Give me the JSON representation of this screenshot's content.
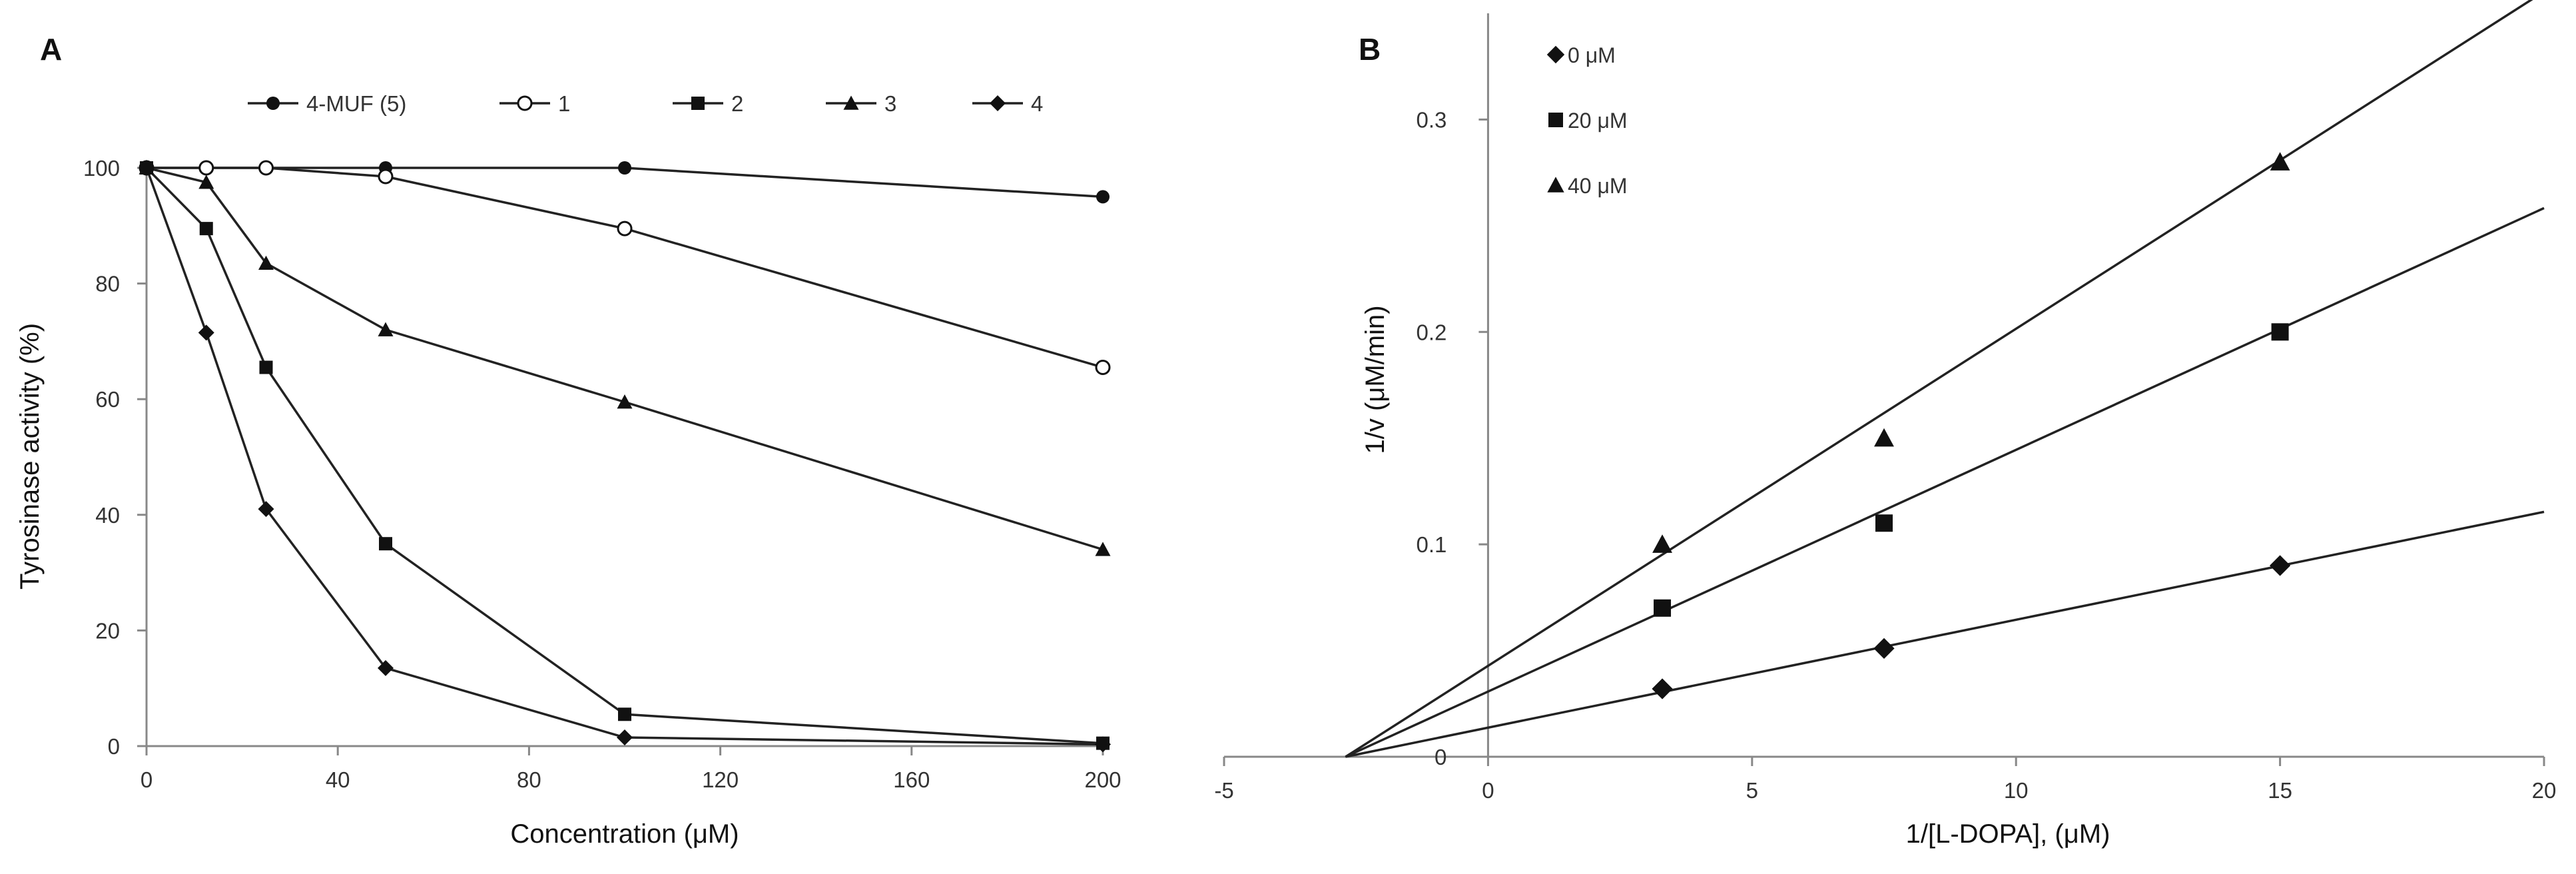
{
  "chart_data": [
    {
      "panel": "A",
      "type": "line",
      "title": "",
      "xlabel": "Concentration (μM)",
      "ylabel": "Tyrosinase activity (%)",
      "xlim": [
        0,
        200
      ],
      "ylim": [
        0,
        100
      ],
      "xticks": [
        0,
        40,
        80,
        120,
        160,
        200
      ],
      "yticks": [
        0,
        20,
        40,
        60,
        80,
        100
      ],
      "grid": false,
      "legend_position": "top",
      "series": [
        {
          "name": "4-MUF (5)",
          "marker": "filled-circle",
          "x": [
            0,
            12.5,
            25,
            50,
            100,
            200
          ],
          "y": [
            100,
            100,
            100,
            100,
            100,
            95
          ]
        },
        {
          "name": "1",
          "marker": "open-circle",
          "x": [
            0,
            12.5,
            25,
            50,
            100,
            200
          ],
          "y": [
            100,
            100,
            100,
            98.5,
            89.5,
            65.5
          ]
        },
        {
          "name": "2",
          "marker": "square",
          "x": [
            0,
            12.5,
            25,
            50,
            100,
            200
          ],
          "y": [
            100,
            89.5,
            65.5,
            35,
            5.5,
            0.5
          ]
        },
        {
          "name": "3",
          "marker": "triangle",
          "x": [
            0,
            12.5,
            25,
            50,
            100,
            200
          ],
          "y": [
            100,
            97.5,
            83.5,
            72,
            59.5,
            34
          ]
        },
        {
          "name": "4",
          "marker": "diamond",
          "x": [
            0,
            12.5,
            25,
            50,
            100,
            200
          ],
          "y": [
            100,
            71.5,
            41,
            13.5,
            1.5,
            0.3
          ]
        }
      ]
    },
    {
      "panel": "B",
      "type": "scatter",
      "title": "",
      "xlabel": "1/[L-DOPA], (μM)",
      "ylabel": "1/v (μM/min)",
      "xlim": [
        -5,
        20
      ],
      "ylim": [
        0,
        0.35
      ],
      "xticks": [
        -5,
        0,
        5,
        10,
        15,
        20
      ],
      "yticks": [
        0,
        0.1,
        0.2,
        0.3
      ],
      "xtick_labels": [
        "-5",
        "0",
        "5",
        "10",
        "15",
        "20"
      ],
      "ytick_labels": [
        "0",
        "0.1",
        "0.2",
        "0.3"
      ],
      "grid": false,
      "legend_position": "top-left",
      "series": [
        {
          "name": "0 μM",
          "marker": "diamond",
          "x": [
            3.3,
            7.5,
            15
          ],
          "y": [
            0.032,
            0.051,
            0.09
          ],
          "fit": {
            "slope": 0.00508,
            "intercept": 0.0137,
            "x_range": [
              -2.7,
              20
            ]
          }
        },
        {
          "name": "20 μM",
          "marker": "square",
          "x": [
            3.3,
            7.5,
            15
          ],
          "y": [
            0.07,
            0.11,
            0.2
          ],
          "fit": {
            "slope": 0.01138,
            "intercept": 0.0307,
            "x_range": [
              -2.7,
              20
            ]
          }
        },
        {
          "name": "40 μM",
          "marker": "triangle",
          "x": [
            3.3,
            7.5,
            15
          ],
          "y": [
            0.1,
            0.15,
            0.28
          ],
          "fit": {
            "slope": 0.01587,
            "intercept": 0.0428,
            "x_range": [
              -2.7,
              20
            ]
          }
        }
      ]
    }
  ],
  "panel_labels": {
    "a": "A",
    "b": "B"
  }
}
